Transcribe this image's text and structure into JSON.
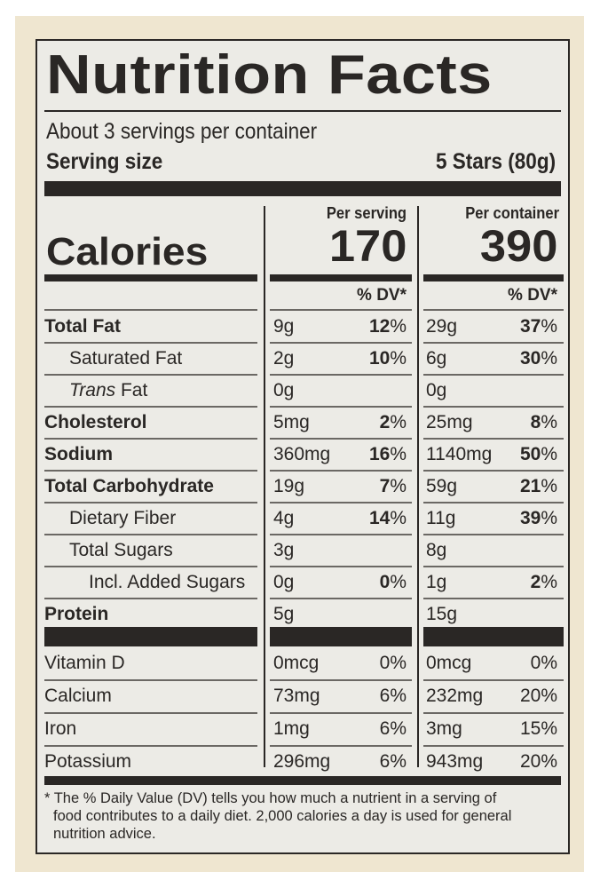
{
  "label": {
    "title": "Nutrition Facts",
    "servings_per_container": "About 3 servings per container",
    "serving_size_label": "Serving size",
    "serving_size_value": "5 Stars (80g)",
    "columns": {
      "per_serving": "Per serving",
      "per_container": "Per container"
    },
    "calories_label": "Calories",
    "calories_per_serving": "170",
    "calories_per_container": "390",
    "dv_header": "% DV*",
    "nutrients": [
      {
        "name": "Total Fat",
        "bold": true,
        "indent": 0,
        "serving_amount": "9g",
        "serving_dv": "12",
        "container_amount": "29g",
        "container_dv": "37"
      },
      {
        "name": "Saturated Fat",
        "bold": false,
        "indent": 1,
        "serving_amount": "2g",
        "serving_dv": "10",
        "container_amount": "6g",
        "container_dv": "30"
      },
      {
        "name_italic": "Trans",
        "name": " Fat",
        "bold": false,
        "indent": 1,
        "serving_amount": "0g",
        "serving_dv": "",
        "container_amount": "0g",
        "container_dv": ""
      },
      {
        "name": "Cholesterol",
        "bold": true,
        "indent": 0,
        "serving_amount": "5mg",
        "serving_dv": "2",
        "container_amount": "25mg",
        "container_dv": "8"
      },
      {
        "name": "Sodium",
        "bold": true,
        "indent": 0,
        "serving_amount": "360mg",
        "serving_dv": "16",
        "container_amount": "1140mg",
        "container_dv": "50"
      },
      {
        "name": "Total Carbohydrate",
        "bold": true,
        "indent": 0,
        "serving_amount": "19g",
        "serving_dv": "7",
        "container_amount": "59g",
        "container_dv": "21"
      },
      {
        "name": "Dietary Fiber",
        "bold": false,
        "indent": 1,
        "serving_amount": "4g",
        "serving_dv": "14",
        "container_amount": "11g",
        "container_dv": "39"
      },
      {
        "name": "Total Sugars",
        "bold": false,
        "indent": 1,
        "serving_amount": "3g",
        "serving_dv": "",
        "container_amount": "8g",
        "container_dv": ""
      },
      {
        "name": "Incl. Added Sugars",
        "bold": false,
        "indent": 2,
        "serving_amount": "0g",
        "serving_dv": "0",
        "container_amount": "1g",
        "container_dv": "2"
      },
      {
        "name": "Protein",
        "bold": true,
        "indent": 0,
        "serving_amount": "5g",
        "serving_dv": "",
        "container_amount": "15g",
        "container_dv": ""
      }
    ],
    "vitamins": [
      {
        "name": "Vitamin D",
        "serving_amount": "0mcg",
        "serving_dv": "0%",
        "container_amount": "0mcg",
        "container_dv": "0%"
      },
      {
        "name": "Calcium",
        "serving_amount": "73mg",
        "serving_dv": "6%",
        "container_amount": "232mg",
        "container_dv": "20%"
      },
      {
        "name": "Iron",
        "serving_amount": "1mg",
        "serving_dv": "6%",
        "container_amount": "3mg",
        "container_dv": "15%"
      },
      {
        "name": "Potassium",
        "serving_amount": "296mg",
        "serving_dv": "6%",
        "container_amount": "943mg",
        "container_dv": "20%"
      }
    ],
    "footnote_line1": "* The % Daily Value (DV) tells you how much a nutrient in a serving of",
    "footnote_line2": "food contributes to a daily diet. 2,000 calories a day is used for general",
    "footnote_line3": "nutrition advice."
  },
  "colors": {
    "ink": "#2a2725",
    "label_bg": "#ecebe6",
    "package_bg": "#efe6d0"
  }
}
